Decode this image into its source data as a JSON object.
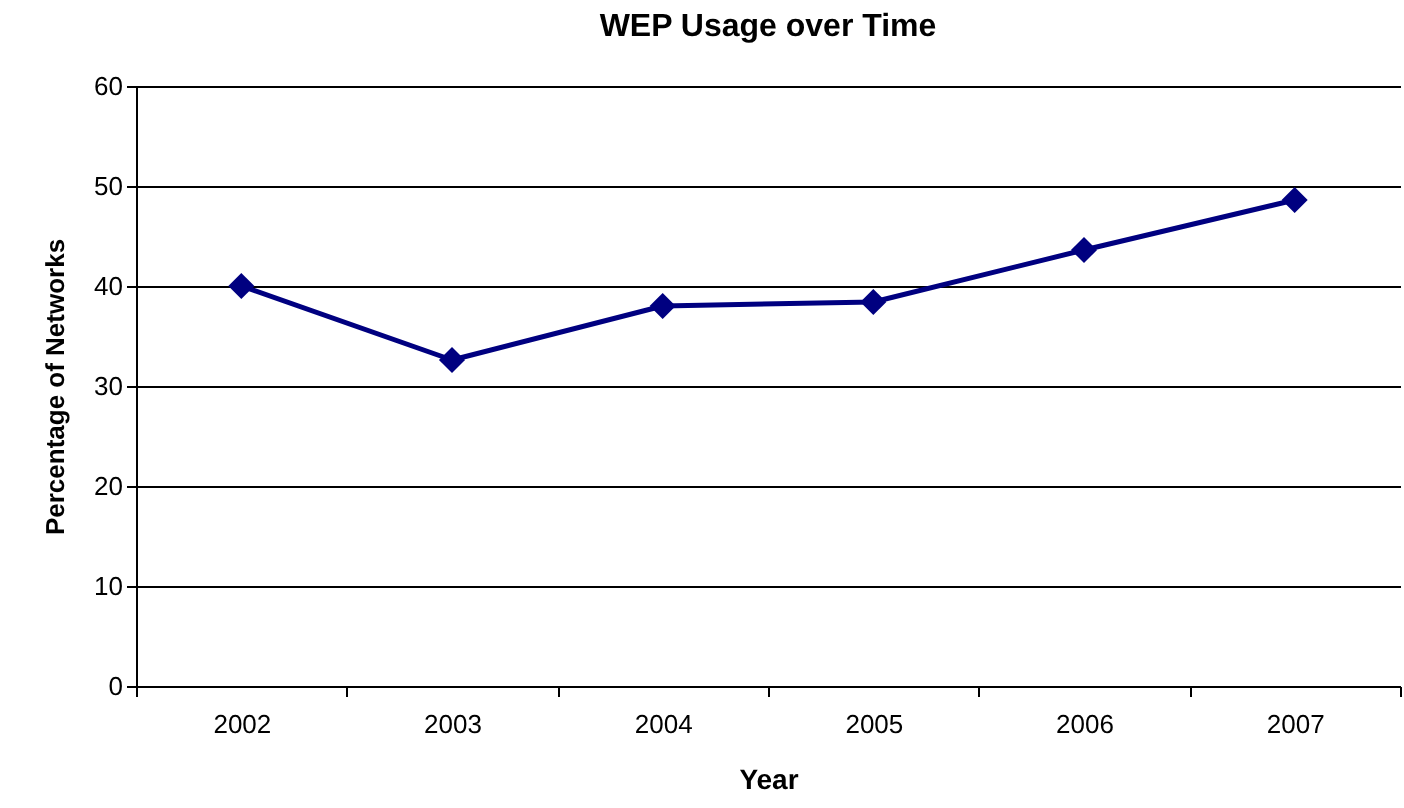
{
  "chart_data": {
    "type": "line",
    "title": "WEP Usage over Time",
    "xlabel": "Year",
    "ylabel": "Percentage of Networks",
    "categories": [
      "2002",
      "2003",
      "2004",
      "2005",
      "2006",
      "2007"
    ],
    "series": [
      {
        "color": "#000080",
        "values": [
          40,
          32.6,
          38,
          38.4,
          43.6,
          48.6
        ]
      }
    ],
    "ylim": [
      0,
      60
    ],
    "yticks": [
      0,
      10,
      20,
      30,
      40,
      50,
      60
    ],
    "grid": "y",
    "marker": "diamond",
    "line_style": "solid"
  }
}
